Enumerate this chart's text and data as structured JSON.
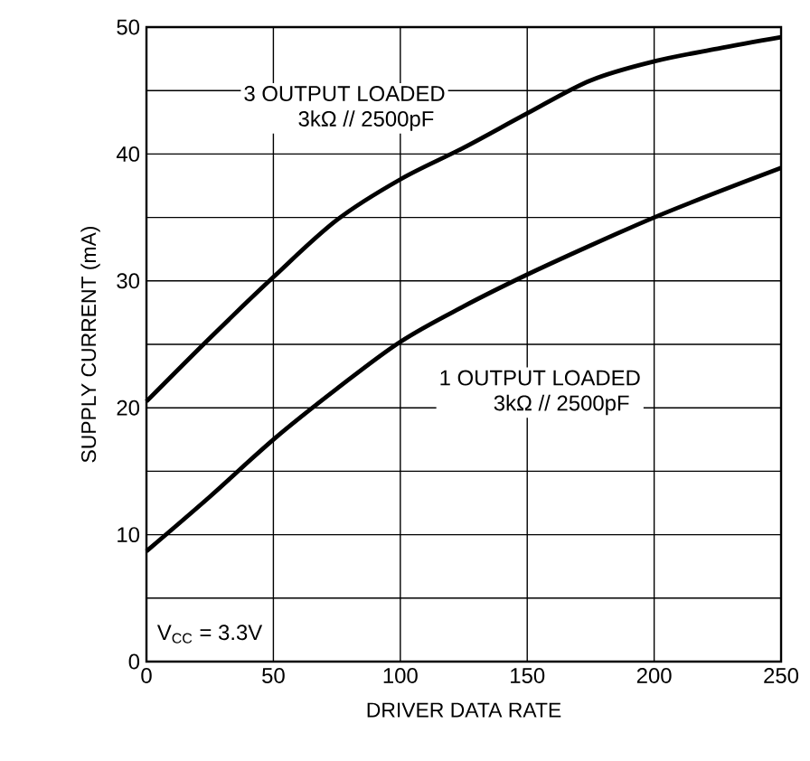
{
  "chart_data": {
    "type": "line",
    "xlabel": "DRIVER DATA RATE",
    "ylabel": "SUPPLY CURRENT (mA)",
    "xlim": [
      0,
      250
    ],
    "ylim": [
      0,
      50
    ],
    "xticks": [
      0,
      50,
      100,
      150,
      200,
      250
    ],
    "yticks": [
      0,
      {
        "value": 5,
        "label": null
      },
      10,
      {
        "value": 15,
        "label": null
      },
      20,
      {
        "value": 25,
        "label": null
      },
      30,
      {
        "value": 35,
        "label": null
      },
      40,
      {
        "value": 45,
        "label": null
      },
      50
    ],
    "grid": true,
    "line_style": "solid",
    "marker": "none",
    "x": [
      0,
      25,
      50,
      75,
      100,
      125,
      150,
      175,
      200,
      225,
      250
    ],
    "series": [
      {
        "name": "3 OUTPUT LOADED",
        "color": "#000000",
        "values": [
          20.5,
          25.5,
          30.3,
          34.8,
          38,
          40.5,
          43.2,
          45.8,
          47.3,
          48.3,
          49.2
        ]
      },
      {
        "name": "1 OUTPUT LOADED",
        "color": "#000000",
        "values": [
          8.7,
          13,
          17.5,
          21.5,
          25.2,
          28,
          30.5,
          32.8,
          35,
          37,
          38.9
        ]
      }
    ],
    "annotations": [
      "3kΩ // 2500pF",
      "3kΩ // 2500pF",
      "V$_{CC}$ = 3.3V"
    ]
  }
}
